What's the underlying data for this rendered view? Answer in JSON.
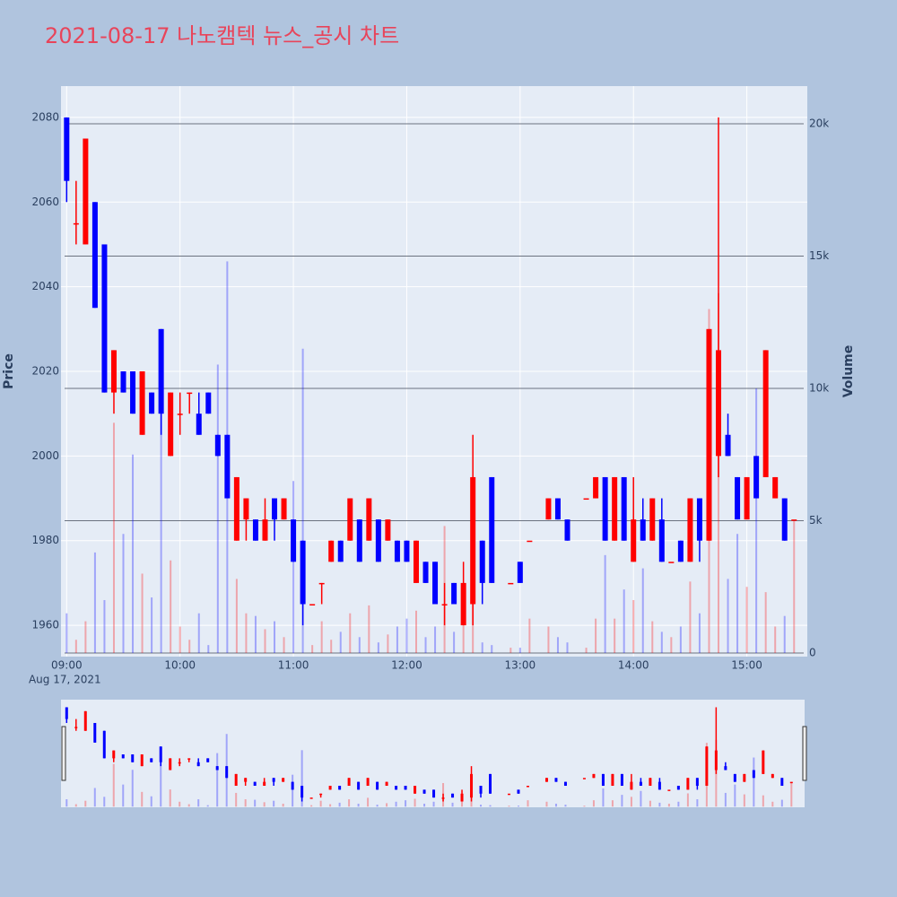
{
  "chart_data": {
    "type": "candlestick",
    "title": "2021-08-17 나노캠텍 뉴스_공시 차트",
    "y_label": "Price",
    "y2_label": "Volume",
    "x_date_label": "Aug 17, 2021",
    "increasing_color": "#ff0000",
    "decreasing_color": "#0000ff",
    "x": [
      "09:00",
      "09:05",
      "09:10",
      "09:15",
      "09:20",
      "09:25",
      "09:30",
      "09:35",
      "09:40",
      "09:45",
      "09:50",
      "09:55",
      "10:00",
      "10:05",
      "10:10",
      "10:15",
      "10:20",
      "10:25",
      "10:30",
      "10:35",
      "10:40",
      "10:45",
      "10:50",
      "10:55",
      "11:00",
      "11:05",
      "11:10",
      "11:15",
      "11:20",
      "11:25",
      "11:30",
      "11:35",
      "11:40",
      "11:45",
      "11:50",
      "11:55",
      "12:00",
      "12:05",
      "12:10",
      "12:15",
      "12:20",
      "12:25",
      "12:30",
      "12:35",
      "12:40",
      "12:45",
      "12:55",
      "13:00",
      "13:05",
      "13:15",
      "13:20",
      "13:25",
      "13:35",
      "13:40",
      "13:45",
      "13:50",
      "13:55",
      "14:00",
      "14:05",
      "14:10",
      "14:15",
      "14:20",
      "14:25",
      "14:30",
      "14:35",
      "14:40",
      "14:45",
      "14:50",
      "14:55",
      "15:00",
      "15:05",
      "15:10",
      "15:15",
      "15:20",
      "15:25"
    ],
    "open": [
      2080,
      2055,
      2050,
      2060,
      2050,
      2015,
      2020,
      2020,
      2005,
      2015,
      2030,
      2000,
      2010,
      2015,
      2010,
      2015,
      2005,
      2005,
      1980,
      1985,
      1985,
      1980,
      1990,
      1985,
      1985,
      1980,
      1965,
      1970,
      1975,
      1980,
      1980,
      1985,
      1980,
      1985,
      1980,
      1980,
      1980,
      1970,
      1975,
      1975,
      1965,
      1970,
      1960,
      1965,
      1980,
      1995,
      1970,
      1975,
      1980,
      1985,
      1990,
      1985,
      1990,
      1990,
      1995,
      1980,
      1995,
      1975,
      1985,
      1980,
      1985,
      1975,
      1980,
      1975,
      1990,
      1980,
      2000,
      2005,
      1995,
      1985,
      2000,
      1995,
      1990,
      1990,
      1985
    ],
    "high": [
      2080,
      2065,
      2075,
      2060,
      2050,
      2025,
      2020,
      2020,
      2020,
      2015,
      2030,
      2015,
      2015,
      2015,
      2015,
      2015,
      2005,
      2005,
      1995,
      1990,
      1985,
      1990,
      1990,
      1990,
      1985,
      1980,
      1965,
      1970,
      1980,
      1980,
      1990,
      1985,
      1990,
      1985,
      1985,
      1980,
      1980,
      1980,
      1975,
      1975,
      1970,
      1970,
      1975,
      2005,
      1980,
      1995,
      1970,
      1975,
      1980,
      1990,
      1990,
      1985,
      1990,
      1995,
      1995,
      1995,
      1995,
      1995,
      1990,
      1990,
      1990,
      1975,
      1980,
      1990,
      1990,
      2030,
      2080,
      2010,
      1995,
      1995,
      2000,
      2025,
      1995,
      1990,
      1985
    ],
    "low": [
      2060,
      2050,
      2050,
      2035,
      2015,
      2010,
      2015,
      2010,
      2005,
      2010,
      2005,
      2000,
      2005,
      2010,
      2005,
      2010,
      2000,
      1990,
      1980,
      1980,
      1980,
      1980,
      1980,
      1985,
      1975,
      1960,
      1965,
      1965,
      1975,
      1975,
      1980,
      1975,
      1980,
      1975,
      1980,
      1975,
      1975,
      1970,
      1970,
      1965,
      1960,
      1965,
      1960,
      1960,
      1965,
      1970,
      1970,
      1970,
      1980,
      1985,
      1985,
      1980,
      1990,
      1990,
      1980,
      1980,
      1980,
      1975,
      1980,
      1980,
      1975,
      1975,
      1975,
      1975,
      1975,
      1980,
      1995,
      2000,
      1985,
      1985,
      1990,
      1995,
      1990,
      1980,
      1985
    ],
    "close": [
      2065,
      2055,
      2075,
      2035,
      2015,
      2025,
      2015,
      2010,
      2020,
      2010,
      2010,
      2015,
      2010,
      2015,
      2005,
      2010,
      2000,
      1990,
      1995,
      1990,
      1980,
      1985,
      1985,
      1990,
      1975,
      1965,
      1965,
      1970,
      1980,
      1975,
      1990,
      1975,
      1990,
      1975,
      1985,
      1975,
      1975,
      1980,
      1970,
      1965,
      1965,
      1965,
      1970,
      1995,
      1970,
      1970,
      1970,
      1970,
      1980,
      1990,
      1985,
      1980,
      1990,
      1995,
      1980,
      1995,
      1980,
      1985,
      1980,
      1990,
      1975,
      1975,
      1975,
      1990,
      1980,
      2030,
      2025,
      2000,
      1985,
      1995,
      1990,
      2025,
      1995,
      1980,
      1985
    ],
    "volume": [
      1500,
      500,
      1200,
      3800,
      2000,
      8700,
      4500,
      7500,
      3000,
      2100,
      12200,
      3500,
      1000,
      500,
      1500,
      300,
      10900,
      14800,
      2800,
      1500,
      1400,
      900,
      1200,
      600,
      6500,
      11500,
      300,
      1200,
      500,
      800,
      1500,
      600,
      1800,
      400,
      700,
      1000,
      1300,
      1600,
      600,
      1000,
      4800,
      800,
      2300,
      3500,
      400,
      300,
      200,
      200,
      1300,
      1000,
      600,
      400,
      200,
      1300,
      3700,
      1300,
      2400,
      2000,
      3200,
      1200,
      800,
      600,
      1000,
      2700,
      1500,
      13000,
      13600,
      2800,
      4500,
      2500,
      10000,
      2300,
      1000,
      1400,
      5000
    ],
    "xlim": [
      "08:57",
      "15:32"
    ],
    "xticks": [
      "09:00",
      "10:00",
      "11:00",
      "12:00",
      "13:00",
      "14:00",
      "15:00"
    ],
    "ylim": [
      1952.6,
      2087.4
    ],
    "yticks": [
      1960,
      1980,
      2000,
      2020,
      2040,
      2060,
      2080
    ],
    "y2lim": [
      -136,
      21424
    ],
    "y2ticks": [
      0,
      {
        "value": 5000,
        "label": "5k"
      },
      {
        "value": 10000,
        "label": "10k"
      },
      {
        "value": 15000,
        "label": "15k"
      },
      {
        "value": 20000,
        "label": "20k"
      }
    ],
    "grid": true,
    "rangeslider": true
  }
}
